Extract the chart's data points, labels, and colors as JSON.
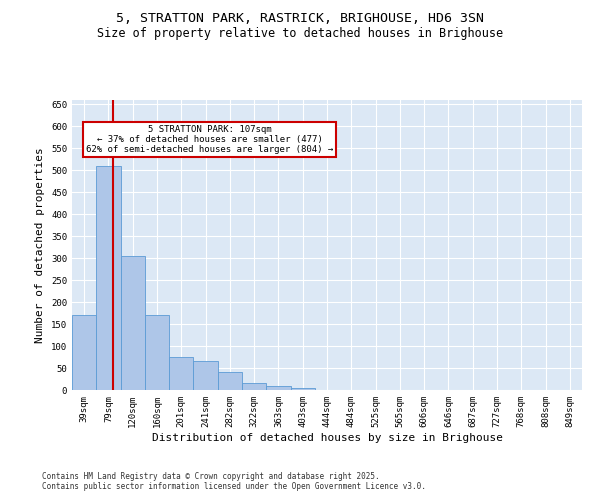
{
  "title1": "5, STRATTON PARK, RASTRICK, BRIGHOUSE, HD6 3SN",
  "title2": "Size of property relative to detached houses in Brighouse",
  "xlabel": "Distribution of detached houses by size in Brighouse",
  "ylabel": "Number of detached properties",
  "bins": [
    "39sqm",
    "79sqm",
    "120sqm",
    "160sqm",
    "201sqm",
    "241sqm",
    "282sqm",
    "322sqm",
    "363sqm",
    "403sqm",
    "444sqm",
    "484sqm",
    "525sqm",
    "565sqm",
    "606sqm",
    "646sqm",
    "687sqm",
    "727sqm",
    "768sqm",
    "808sqm",
    "849sqm"
  ],
  "values": [
    170,
    510,
    305,
    170,
    75,
    65,
    40,
    15,
    10,
    4,
    1,
    1,
    0,
    0,
    0,
    0,
    0,
    0,
    0,
    0,
    1
  ],
  "bar_color": "#aec6e8",
  "bar_edge_color": "#5b9bd5",
  "vline_color": "#cc0000",
  "annotation_text": "5 STRATTON PARK: 107sqm\n← 37% of detached houses are smaller (477)\n62% of semi-detached houses are larger (804) →",
  "annotation_box_color": "#cc0000",
  "ylim": [
    0,
    660
  ],
  "yticks": [
    0,
    50,
    100,
    150,
    200,
    250,
    300,
    350,
    400,
    450,
    500,
    550,
    600,
    650
  ],
  "background_color": "#dce8f5",
  "footer1": "Contains HM Land Registry data © Crown copyright and database right 2025.",
  "footer2": "Contains public sector information licensed under the Open Government Licence v3.0.",
  "title_fontsize": 9.5,
  "subtitle_fontsize": 8.5,
  "tick_fontsize": 6.5,
  "label_fontsize": 8,
  "footer_fontsize": 5.5
}
